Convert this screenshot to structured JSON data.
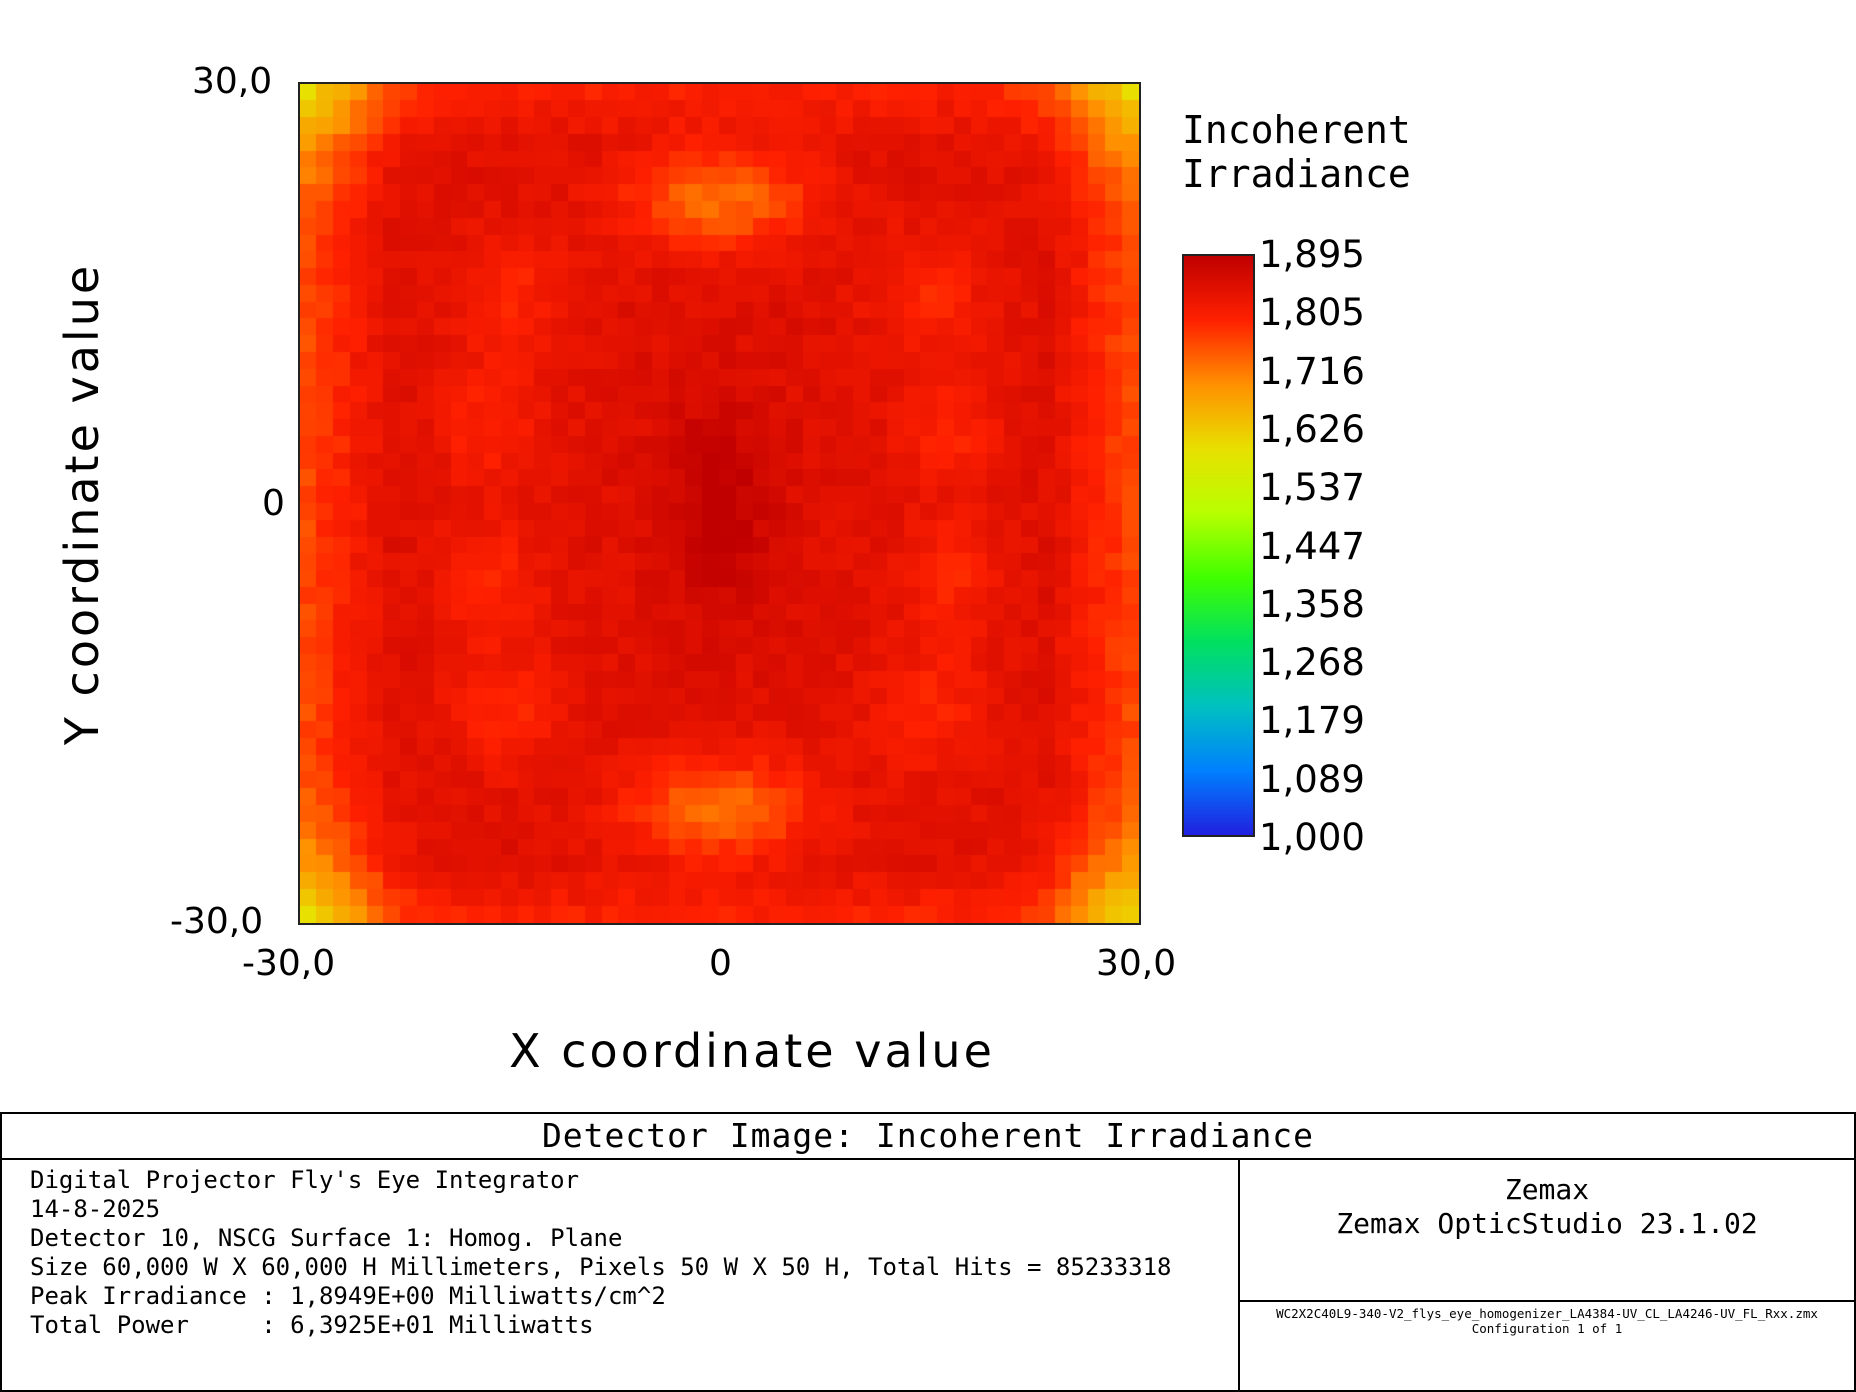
{
  "chart_data": {
    "type": "heatmap",
    "title": "Detector Image: Incoherent Irradiance",
    "xlabel": "X coordinate value",
    "ylabel": "Y coordinate value",
    "xlim": [
      -30.0,
      30.0
    ],
    "ylim": [
      -30.0,
      30.0
    ],
    "x_ticks": [
      "-30,0",
      "0",
      "30,0"
    ],
    "y_ticks": [
      "30,0",
      "0",
      "-30,0"
    ],
    "grid": {
      "cols": 50,
      "rows": 50
    },
    "colorbar": {
      "title_lines": [
        "Incoherent",
        "Irradiance"
      ],
      "min": 1.0,
      "max": 1.895,
      "tick_labels": [
        "1,895",
        "1,805",
        "1,716",
        "1,626",
        "1,537",
        "1,447",
        "1,358",
        "1,268",
        "1,179",
        "1,089",
        "1,000"
      ],
      "colormap": [
        "#c00000",
        "#ff2000",
        "#ff9000",
        "#e8e000",
        "#b8ff00",
        "#40ff00",
        "#00e060",
        "#00c0c0",
        "#0080ff",
        "#2020e0"
      ]
    },
    "peak_value": 1.8949,
    "approx_regions": [
      {
        "region": "center",
        "value": 1.89
      },
      {
        "region": "central ring",
        "value": 1.83
      },
      {
        "region": "top/bottom lobes",
        "value": 1.7
      },
      {
        "region": "left/right edges",
        "value": 1.72
      },
      {
        "region": "corners",
        "value": 1.66
      }
    ],
    "legend": "right"
  },
  "footer": {
    "title": "Detector Image: Incoherent Irradiance",
    "lines": [
      "Digital Projector Fly's Eye Integrator",
      "14-8-2025",
      "Detector 10, NSCG Surface 1: Homog. Plane",
      "Size 60,000 W X 60,000 H Millimeters, Pixels 50 W X 50 H, Total Hits = 85233318",
      "Peak Irradiance : 1,8949E+00 Milliwatts/cm^2",
      "Total Power     : 6,3925E+01 Milliwatts"
    ],
    "company": "Zemax",
    "version": "Zemax OpticStudio 23.1.02",
    "file": "WC2X2C40L9-340-V2_flys_eye_homogenizer_LA4384-UV_CL_LA4246-UV_FL_Rxx.zmx",
    "config": "Configuration 1 of 1"
  }
}
